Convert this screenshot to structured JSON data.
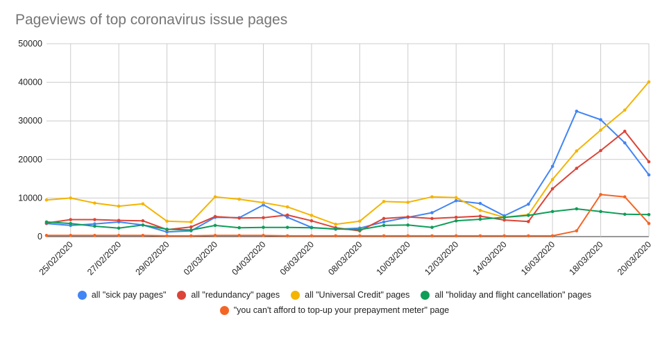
{
  "chart_data": {
    "type": "line",
    "title": "Pageviews of top coronavirus issue pages",
    "xlabel": "",
    "ylabel": "",
    "ylim": [
      0,
      50000
    ],
    "yticks": [
      "0",
      "10000",
      "20000",
      "30000",
      "40000",
      "50000"
    ],
    "x": [
      "24/02/2020",
      "25/02/2020",
      "26/02/2020",
      "27/02/2020",
      "28/02/2020",
      "29/02/2020",
      "01/03/2020",
      "02/03/2020",
      "03/03/2020",
      "04/03/2020",
      "05/03/2020",
      "06/03/2020",
      "07/03/2020",
      "08/03/2020",
      "09/03/2020",
      "10/03/2020",
      "11/03/2020",
      "12/03/2020",
      "13/03/2020",
      "14/03/2020",
      "15/03/2020",
      "16/03/2020",
      "17/03/2020",
      "18/03/2020",
      "19/03/2020",
      "20/03/2020"
    ],
    "xtick_labels": [
      "25/02/2020",
      "27/02/2020",
      "29/02/2020",
      "02/03/2020",
      "04/03/2020",
      "06/03/2020",
      "08/03/2020",
      "10/03/2020",
      "12/03/2020",
      "14/03/2020",
      "16/03/2020",
      "18/03/2020",
      "20/03/2020"
    ],
    "grid": true,
    "legend_position": "bottom",
    "series": [
      {
        "name": "all \"sick pay pages\"",
        "color": "#4285f4",
        "values": [
          3400,
          2900,
          3300,
          3800,
          3000,
          1200,
          1500,
          5000,
          4900,
          8200,
          5000,
          2400,
          1900,
          2200,
          3800,
          5000,
          6200,
          9300,
          8600,
          5400,
          8400,
          18200,
          32500,
          30300,
          24300,
          16000
        ]
      },
      {
        "name": "all \"redundancy\" pages",
        "color": "#db4437",
        "values": [
          3500,
          4400,
          4400,
          4200,
          4100,
          1800,
          2500,
          5200,
          4800,
          4900,
          5600,
          4100,
          2300,
          1500,
          4700,
          5100,
          4700,
          5000,
          5300,
          4300,
          3900,
          12400,
          17700,
          22300,
          27300,
          19400
        ]
      },
      {
        "name": "all \"Universal Credit\" pages",
        "color": "#f4b400",
        "values": [
          9500,
          10000,
          8700,
          7900,
          8500,
          4000,
          3800,
          10300,
          9700,
          8800,
          7700,
          5500,
          3200,
          4000,
          9100,
          8900,
          10300,
          10100,
          6800,
          5000,
          5700,
          14800,
          22200,
          27600,
          32800,
          40100
        ]
      },
      {
        "name": "all \"holiday and flight cancellation\" pages",
        "color": "#0f9d58",
        "values": [
          3800,
          3400,
          2700,
          2200,
          3000,
          1900,
          1700,
          2900,
          2300,
          2400,
          2400,
          2300,
          2000,
          1800,
          2900,
          3000,
          2400,
          4100,
          4500,
          5000,
          5500,
          6500,
          7200,
          6500,
          5800,
          5700
        ]
      },
      {
        "name": "\"you can't afford to top-up your prepayment meter\" page",
        "color": "#f46524",
        "values": [
          300,
          300,
          300,
          300,
          300,
          200,
          200,
          300,
          300,
          300,
          200,
          200,
          200,
          200,
          200,
          200,
          200,
          200,
          200,
          200,
          200,
          200,
          1500,
          10900,
          10300,
          3400
        ]
      }
    ]
  }
}
